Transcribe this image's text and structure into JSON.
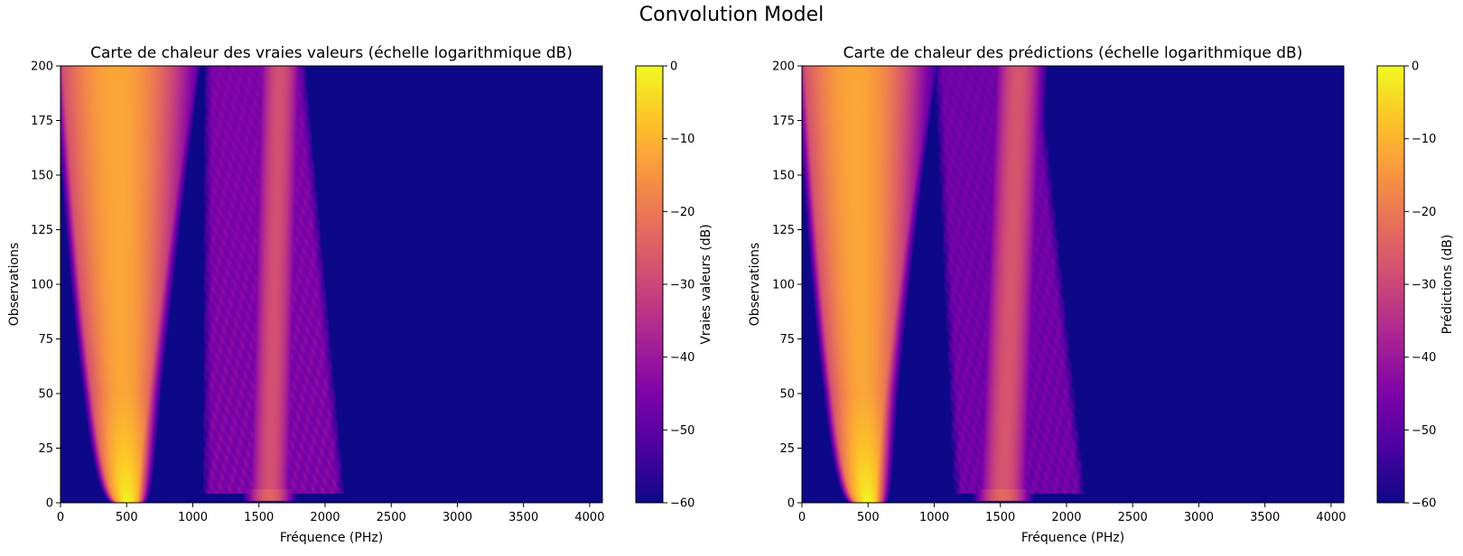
{
  "figure": {
    "suptitle": "Convolution Model"
  },
  "chart_data": [
    {
      "type": "heatmap",
      "title": "Carte de chaleur des vraies valeurs (échelle logarithmique dB)",
      "xlabel": "Fréquence (PHz)",
      "ylabel": "Observations",
      "xlim": [
        0,
        4096
      ],
      "ylim": [
        0,
        200
      ],
      "xticks": [
        0,
        500,
        1000,
        1500,
        2000,
        2500,
        3000,
        3500,
        4000
      ],
      "yticks": [
        0,
        25,
        50,
        75,
        100,
        125,
        150,
        175,
        200
      ],
      "colormap": "plasma",
      "colorbar": {
        "label": "Vraies valeurs (dB)",
        "range": [
          -60,
          0
        ],
        "ticks": [
          0,
          -10,
          -20,
          -30,
          -40,
          -50,
          -60
        ]
      },
      "background_db": -60,
      "bands": [
        {
          "name": "main",
          "center_bottom": 510,
          "center_top": 420,
          "width_bottom": 60,
          "width_top": 350,
          "right_edge_bottom": 1000,
          "right_edge_top": 1030,
          "peak_db": 0,
          "plateau_db": -12
        },
        {
          "name": "lobes",
          "left_bottom": 1080,
          "left_top": 1090,
          "right_bottom": 2150,
          "right_top": 1850,
          "level_db": -45
        },
        {
          "name": "secondary",
          "center_bottom": 1580,
          "center_top": 1660,
          "width": 150,
          "peak_db": -28
        }
      ]
    },
    {
      "type": "heatmap",
      "title": "Carte de chaleur des prédictions (échelle logarithmique dB)",
      "xlabel": "Fréquence (PHz)",
      "ylabel": "Observations",
      "xlim": [
        0,
        4096
      ],
      "ylim": [
        0,
        200
      ],
      "xticks": [
        0,
        500,
        1000,
        1500,
        2000,
        2500,
        3000,
        3500,
        4000
      ],
      "yticks": [
        0,
        25,
        50,
        75,
        100,
        125,
        150,
        175,
        200
      ],
      "colormap": "plasma",
      "colorbar": {
        "label": "Prédictions (dB)",
        "range": [
          -60,
          0
        ],
        "ticks": [
          0,
          -10,
          -20,
          -30,
          -40,
          -50,
          -60
        ]
      },
      "background_db": -60,
      "bands": [
        {
          "name": "main",
          "center_bottom": 500,
          "center_top": 400,
          "width_bottom": 70,
          "width_top": 330,
          "right_edge_bottom": 900,
          "right_edge_top": 1010,
          "peak_db": 0,
          "plateau_db": -12
        },
        {
          "name": "lobes",
          "left_bottom": 1150,
          "left_top": 1000,
          "right_bottom": 2150,
          "right_top": 1800,
          "level_db": -47
        },
        {
          "name": "secondary",
          "center_bottom": 1520,
          "center_top": 1640,
          "width": 170,
          "peak_db": -27
        }
      ]
    }
  ]
}
